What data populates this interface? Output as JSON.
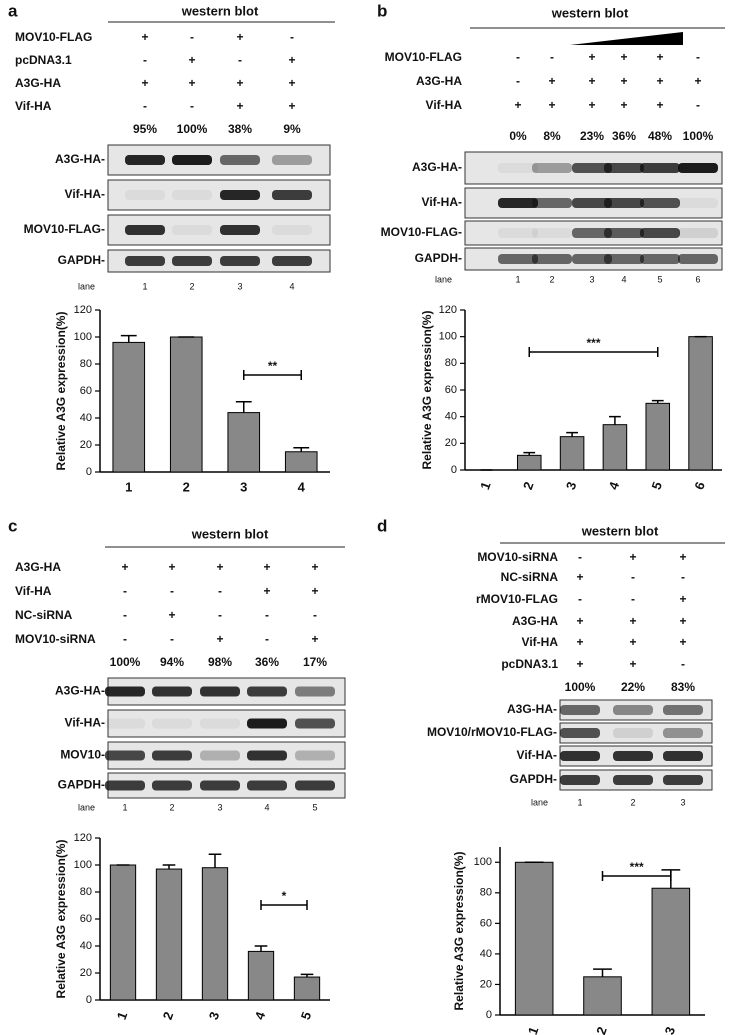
{
  "panel_labels": [
    "a",
    "b",
    "c",
    "d"
  ],
  "blots": [
    {
      "title": "western blot",
      "rows": [
        {
          "label": "MOV10-FLAG",
          "marks": [
            "+",
            "-",
            "+",
            "-"
          ]
        },
        {
          "label": "pcDNA3.1",
          "marks": [
            "-",
            "+",
            "-",
            "+"
          ]
        },
        {
          "label": "A3G-HA",
          "marks": [
            "+",
            "+",
            "+",
            "+"
          ]
        },
        {
          "label": "Vif-HA",
          "marks": [
            "-",
            "-",
            "+",
            "+"
          ]
        }
      ],
      "percents": [
        "95%",
        "100%",
        "38%",
        "9%"
      ],
      "bands": [
        "A3G-HA-",
        "Vif-HA-",
        "MOV10-FLAG-",
        "GAPDH-"
      ],
      "lane_label": "lane",
      "lanes": [
        "1",
        "2",
        "3",
        "4"
      ]
    },
    {
      "title": "western blot",
      "rows": [
        {
          "label": "MOV10-FLAG",
          "marks": [
            "-",
            "-",
            "+",
            "+",
            "+",
            "-"
          ]
        },
        {
          "label": "A3G-HA",
          "marks": [
            "-",
            "+",
            "+",
            "+",
            "+",
            "+"
          ]
        },
        {
          "label": "Vif-HA",
          "marks": [
            "+",
            "+",
            "+",
            "+",
            "+",
            "-"
          ]
        }
      ],
      "percents": [
        "0%",
        "8%",
        "23%",
        "36%",
        "48%",
        "100%"
      ],
      "bands": [
        "A3G-HA-",
        "Vif-HA-",
        "MOV10-FLAG-",
        "GAPDH-"
      ],
      "lane_label": "lane",
      "lanes": [
        "1",
        "2",
        "3",
        "4",
        "5",
        "6"
      ]
    },
    {
      "title": "western blot",
      "rows": [
        {
          "label": "A3G-HA",
          "marks": [
            "+",
            "+",
            "+",
            "+",
            "+"
          ]
        },
        {
          "label": "Vif-HA",
          "marks": [
            "-",
            "-",
            "-",
            "+",
            "+"
          ]
        },
        {
          "label": "NC-siRNA",
          "marks": [
            "-",
            "+",
            "-",
            "-",
            "-"
          ]
        },
        {
          "label": "MOV10-siRNA",
          "marks": [
            "-",
            "-",
            "+",
            "-",
            "+"
          ]
        }
      ],
      "percents": [
        "100%",
        "94%",
        "98%",
        "36%",
        "17%"
      ],
      "bands": [
        "A3G-HA-",
        "Vif-HA-",
        "MOV10-",
        "GAPDH-"
      ],
      "lane_label": "lane",
      "lanes": [
        "1",
        "2",
        "3",
        "4",
        "5"
      ]
    },
    {
      "title": "western blot",
      "rows": [
        {
          "label": "MOV10-siRNA",
          "marks": [
            "-",
            "+",
            "+"
          ]
        },
        {
          "label": "NC-siRNA",
          "marks": [
            "+",
            "-",
            "-"
          ]
        },
        {
          "label": "rMOV10-FLAG",
          "marks": [
            "-",
            "-",
            "+"
          ]
        },
        {
          "label": "A3G-HA",
          "marks": [
            "+",
            "+",
            "+"
          ]
        },
        {
          "label": "Vif-HA",
          "marks": [
            "+",
            "+",
            "+"
          ]
        },
        {
          "label": "pcDNA3.1",
          "marks": [
            "+",
            "+",
            "-"
          ]
        }
      ],
      "percents": [
        "100%",
        "22%",
        "83%"
      ],
      "bands": [
        "A3G-HA-",
        "MOV10/rMOV10-FLAG-",
        "Vif-HA-",
        "GAPDH-"
      ],
      "lane_label": "lane",
      "lanes": [
        "1",
        "2",
        "3"
      ]
    }
  ],
  "chart_data": [
    {
      "type": "bar",
      "ylabel": "Relative A3G expression(%)",
      "categories": [
        "1",
        "2",
        "3",
        "4"
      ],
      "values": [
        96,
        100,
        44,
        15
      ],
      "errors": [
        5,
        0,
        8,
        3
      ],
      "color": "#888888",
      "ylim": [
        0,
        120
      ],
      "yticks": [
        0,
        20,
        40,
        60,
        80,
        100,
        120
      ],
      "significance": "**"
    },
    {
      "type": "bar",
      "ylabel": "Relative A3G expression(%)",
      "categories": [
        "1",
        "2",
        "3",
        "4",
        "5",
        "6"
      ],
      "values": [
        0,
        11,
        25,
        34,
        50,
        100
      ],
      "errors": [
        0,
        2,
        3,
        6,
        2,
        0
      ],
      "color": "#888888",
      "ylim": [
        0,
        120
      ],
      "yticks": [
        0,
        20,
        40,
        60,
        80,
        100,
        120
      ],
      "significance": "***"
    },
    {
      "type": "bar",
      "ylabel": "Relative A3G expression(%)",
      "categories": [
        "1",
        "2",
        "3",
        "4",
        "5"
      ],
      "values": [
        100,
        97,
        98,
        36,
        17
      ],
      "errors": [
        0,
        3,
        10,
        4,
        2
      ],
      "color": "#888888",
      "ylim": [
        0,
        120
      ],
      "yticks": [
        0,
        20,
        40,
        60,
        80,
        100,
        120
      ],
      "significance": "*"
    },
    {
      "type": "bar",
      "ylabel": "Relative A3G expression(%)",
      "categories": [
        "1",
        "2",
        "3"
      ],
      "values": [
        100,
        25,
        83
      ],
      "errors": [
        0,
        5,
        12
      ],
      "color": "#888888",
      "ylim": [
        0,
        110
      ],
      "yticks": [
        0,
        20,
        40,
        60,
        80,
        100
      ],
      "significance": "***"
    }
  ]
}
